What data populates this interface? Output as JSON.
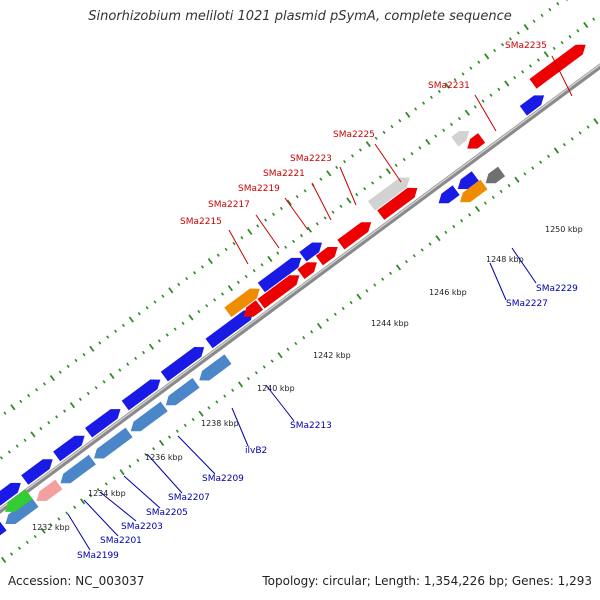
{
  "title": "Sinorhizobium meliloti 1021 plasmid pSymA, complete sequence",
  "footer": {
    "accession": "Accession: NC_003037",
    "topology": "Topology: circular; Length: 1,354,226 bp; Genes: 1,293"
  },
  "colors": {
    "background": "#ffffff",
    "backbone": "#888888",
    "tick_green": "#2e8b22",
    "gene_red": "#ee0000",
    "gene_blue": "#1a1ae6",
    "gene_steelblue": "#4a86c8",
    "gene_orange": "#f08c00",
    "gene_lightgray": "#d2d2d2",
    "gene_darkgray": "#707070",
    "gene_green": "#33cc33",
    "gene_pink": "#f4a0a0",
    "label_red": "#cc0000",
    "label_blue": "#0000aa"
  },
  "scale_labels": [
    "1232 kbp",
    "1234 kbp",
    "1236 kbp",
    "1238 kbp",
    "1240 kbp",
    "1242 kbp",
    "1244 kbp",
    "1246 kbp",
    "1248 kbp",
    "1250 kbp"
  ],
  "gene_labels_top": [
    "SMa2215",
    "SMa2217",
    "SMa2219",
    "SMa2221",
    "SMa2223",
    "SMa2225",
    "SMa2231",
    "SMa2235"
  ],
  "gene_labels_bottom": [
    "SMa2199",
    "SMa2201",
    "SMa2203",
    "SMa2205",
    "SMa2207",
    "SMa2209",
    "ilvB2",
    "SMa2213",
    "SMa2227",
    "SMa2229"
  ]
}
